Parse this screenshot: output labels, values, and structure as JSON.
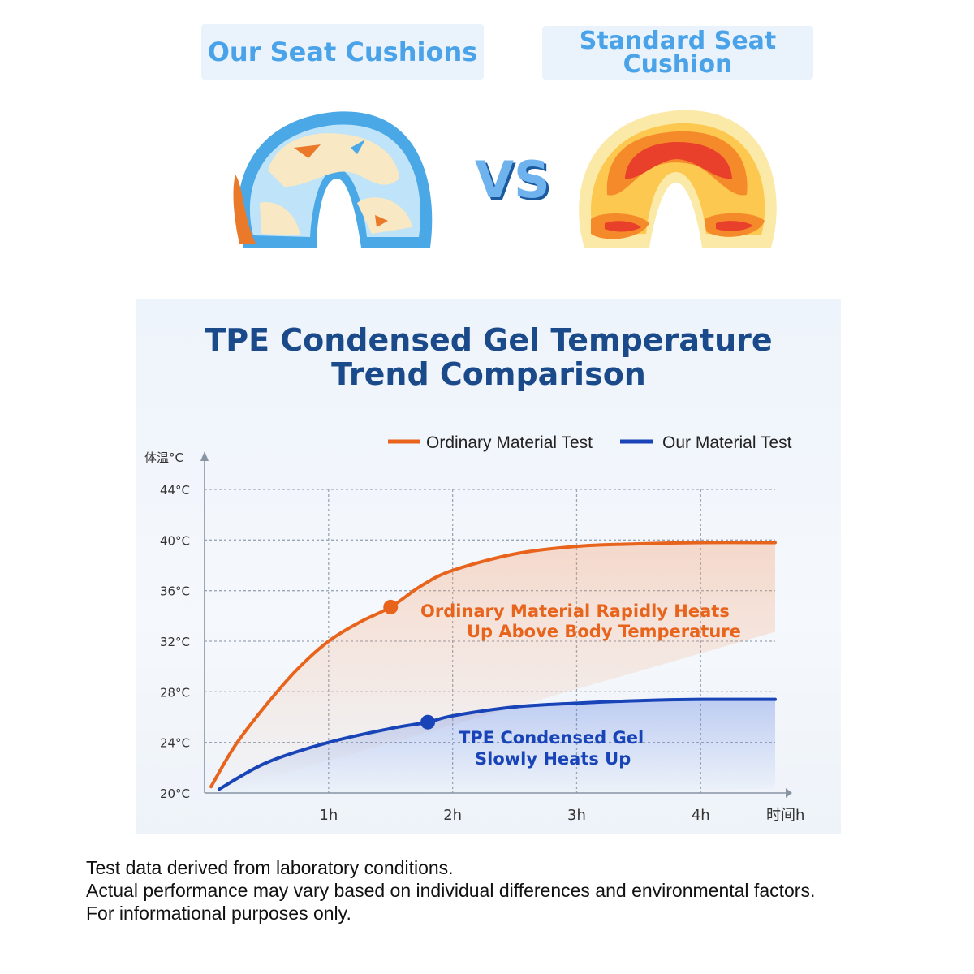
{
  "comparison": {
    "ours_label": "Our Seat Cushions",
    "standard_label_line1": "Standard Seat",
    "standard_label_line2": "Cushion",
    "vs_text": "VS",
    "ours_heatmap_icon": "cool-pressure-map-icon",
    "standard_heatmap_icon": "hot-pressure-map-icon"
  },
  "chart": {
    "title_line1": "TPE Condensed Gel Temperature",
    "title_line2": "Trend Comparison",
    "annotation_ordinary_line1": "Ordinary Material Rapidly Heats",
    "annotation_ordinary_line2": "Up Above Body Temperature",
    "annotation_ours_line1": "TPE Condensed Gel",
    "annotation_ours_line2": "Slowly Heats Up"
  },
  "chart_data": {
    "type": "line",
    "title": "TPE Condensed Gel Temperature Trend Comparison",
    "xlabel": "时间h",
    "ylabel": "体温°C",
    "x_ticks": [
      "1h",
      "2h",
      "3h",
      "4h"
    ],
    "y_ticks": [
      "20°C",
      "24°C",
      "28°C",
      "32°C",
      "36°C",
      "40°C",
      "44°C"
    ],
    "xlim": [
      0,
      4.6
    ],
    "ylim": [
      20,
      44
    ],
    "grid": true,
    "legend_position": "top-right",
    "series": [
      {
        "name": "Ordinary Material Test",
        "color": "#e8641c",
        "x": [
          0,
          0.25,
          0.5,
          0.75,
          1.0,
          1.25,
          1.5,
          1.75,
          2.0,
          2.5,
          3.0,
          3.5,
          4.0,
          4.6
        ],
        "y": [
          20.5,
          23.8,
          27.0,
          29.8,
          32.0,
          33.5,
          34.7,
          36.4,
          37.6,
          38.9,
          39.5,
          39.7,
          39.8,
          39.8
        ],
        "marker_x": 1.5,
        "marker_y": 34.7
      },
      {
        "name": "Our Material Test",
        "color": "#1844b8",
        "x": [
          0,
          0.5,
          1.0,
          1.5,
          1.8,
          2.0,
          2.5,
          3.0,
          3.5,
          4.0,
          4.6
        ],
        "y": [
          20.3,
          22.4,
          24.0,
          25.1,
          25.6,
          26.1,
          26.8,
          27.1,
          27.3,
          27.4,
          27.4
        ],
        "marker_x": 1.8,
        "marker_y": 25.6
      }
    ]
  },
  "footnote": {
    "line1": "Test data derived from laboratory conditions.",
    "line2": "Actual performance may vary based on individual differences and environmental factors.",
    "line3": "For informational purposes only."
  }
}
